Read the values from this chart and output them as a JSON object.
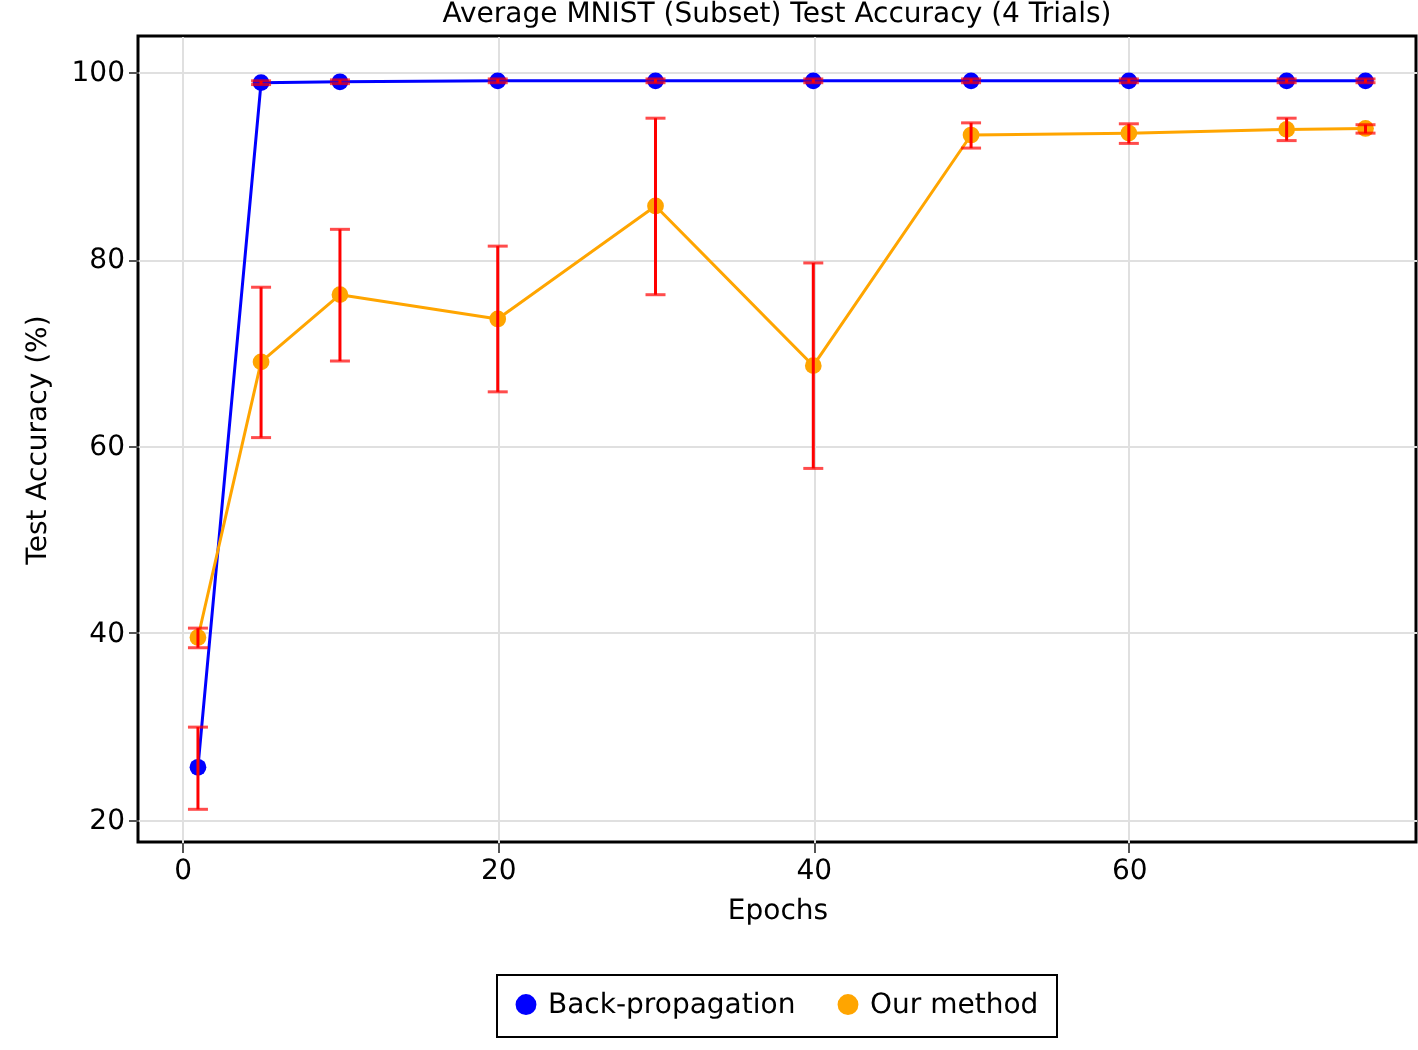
{
  "chart_data": {
    "type": "line",
    "title": "Average MNIST (Subset) Test Accuracy (4 Trials)",
    "xlabel": "Epochs",
    "ylabel": "Test Accuracy (%)",
    "x": [
      1,
      5,
      10,
      20,
      30,
      40,
      50,
      60,
      70,
      75
    ],
    "series": [
      {
        "name": "Back-propagation",
        "color": "#0000ff",
        "values": [
          25.6,
          98.9,
          99.0,
          99.1,
          99.1,
          99.1,
          99.1,
          99.1,
          99.1,
          99.1
        ],
        "errors": [
          [
            21.1,
            29.9
          ],
          0.2,
          0.2,
          0.2,
          0.2,
          0.2,
          0.2,
          0.2,
          0.2,
          0.2
        ]
      },
      {
        "name": "Our method",
        "color": "#ffa500",
        "values": [
          39.5,
          69.0,
          76.2,
          73.6,
          85.7,
          68.6,
          93.3,
          93.5,
          93.9,
          94.0
        ],
        "errors": [
          [
            38.4,
            40.5
          ],
          [
            60.9,
            77.0
          ],
          [
            69.1,
            83.2
          ],
          [
            65.8,
            81.4
          ],
          [
            76.2,
            95.1
          ],
          [
            57.6,
            79.6
          ],
          [
            91.9,
            94.6
          ],
          [
            92.4,
            94.5
          ],
          [
            92.7,
            95.1
          ],
          [
            93.5,
            94.4
          ]
        ]
      }
    ],
    "xlim": [
      -2.8,
      78.2
    ],
    "xticks": [
      0,
      20,
      40,
      60
    ],
    "ylim": [
      17.6,
      103.9
    ],
    "yticks": [
      20,
      40,
      60,
      80,
      100
    ],
    "grid": true,
    "legend": "bottom",
    "marker": "circle",
    "line_style": "solid"
  }
}
